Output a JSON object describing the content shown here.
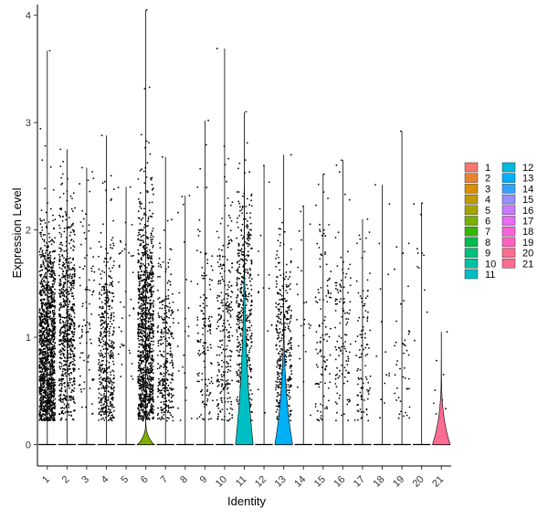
{
  "chart_data": {
    "type": "violin",
    "xlabel": "Identity",
    "ylabel": "Expression Level",
    "ylim": [
      -0.2,
      4.1
    ],
    "y_ticks": [
      0,
      1,
      2,
      3,
      4
    ],
    "categories": [
      "1",
      "2",
      "3",
      "4",
      "5",
      "6",
      "7",
      "8",
      "9",
      "10",
      "11",
      "12",
      "13",
      "14",
      "15",
      "16",
      "17",
      "18",
      "19",
      "20",
      "21"
    ],
    "colors": [
      "#F8766D",
      "#EA8331",
      "#D89000",
      "#C09B00",
      "#A3A500",
      "#7CAE00",
      "#39B600",
      "#00BB4E",
      "#00BF7D",
      "#00C1A3",
      "#00BFC4",
      "#00BAE0",
      "#00B0F6",
      "#35A2FF",
      "#9590FF",
      "#C77CFF",
      "#E76BF3",
      "#FA62DB",
      "#FF62BC",
      "#FF6C91",
      "#FF6C91"
    ],
    "series": [
      {
        "name": "1",
        "max": 3.67,
        "points": 1400,
        "center": 0.85,
        "spread": 0.55
      },
      {
        "name": "2",
        "max": 2.75,
        "points": 700,
        "center": 1.1,
        "spread": 0.55
      },
      {
        "name": "3",
        "max": 2.58,
        "points": 90,
        "center": 1.3,
        "spread": 0.6
      },
      {
        "name": "4",
        "max": 2.88,
        "points": 450,
        "center": 0.8,
        "spread": 0.6
      },
      {
        "name": "5",
        "max": 2.4,
        "points": 40,
        "center": 1.3,
        "spread": 0.6
      },
      {
        "name": "6",
        "max": 4.05,
        "points": 1100,
        "center": 1.0,
        "spread": 0.65
      },
      {
        "name": "7",
        "max": 2.68,
        "points": 320,
        "center": 0.7,
        "spread": 0.5
      },
      {
        "name": "8",
        "max": 2.32,
        "points": 25,
        "center": 1.1,
        "spread": 0.6
      },
      {
        "name": "9",
        "max": 3.02,
        "points": 140,
        "center": 0.9,
        "spread": 0.6
      },
      {
        "name": "10",
        "max": 3.69,
        "points": 260,
        "center": 1.0,
        "spread": 0.65
      },
      {
        "name": "11",
        "max": 3.1,
        "points": 480,
        "center": 1.2,
        "spread": 0.6
      },
      {
        "name": "12",
        "max": 2.6,
        "points": 15,
        "center": 1.4,
        "spread": 0.6
      },
      {
        "name": "13",
        "max": 2.7,
        "points": 360,
        "center": 0.8,
        "spread": 0.5
      },
      {
        "name": "14",
        "max": 2.22,
        "points": 25,
        "center": 1.3,
        "spread": 0.6
      },
      {
        "name": "15",
        "max": 2.52,
        "points": 110,
        "center": 1.1,
        "spread": 0.6
      },
      {
        "name": "16",
        "max": 2.65,
        "points": 120,
        "center": 1.1,
        "spread": 0.6
      },
      {
        "name": "17",
        "max": 2.1,
        "points": 100,
        "center": 0.8,
        "spread": 0.55
      },
      {
        "name": "18",
        "max": 2.42,
        "points": 15,
        "center": 1.2,
        "spread": 0.6
      },
      {
        "name": "19",
        "max": 2.92,
        "points": 45,
        "center": 0.8,
        "spread": 0.6
      },
      {
        "name": "20",
        "max": 2.25,
        "points": 12,
        "center": 1.8,
        "spread": 0.4
      },
      {
        "name": "21",
        "max": 1.05,
        "points": 8,
        "center": 0.6,
        "spread": 0.3
      }
    ],
    "violins": [
      {
        "category": "6",
        "height": 0.25,
        "width": 0.42
      },
      {
        "category": "11",
        "height": 2.4,
        "width": 0.45
      },
      {
        "category": "13",
        "height": 1.55,
        "width": 0.45
      },
      {
        "category": "21",
        "height": 0.8,
        "width": 0.45
      }
    ],
    "legend": {
      "position": "right",
      "entries": [
        "1",
        "2",
        "3",
        "4",
        "5",
        "6",
        "7",
        "8",
        "9",
        "10",
        "11",
        "12",
        "13",
        "14",
        "15",
        "16",
        "17",
        "18",
        "19",
        "20",
        "21"
      ]
    },
    "grid": false
  }
}
